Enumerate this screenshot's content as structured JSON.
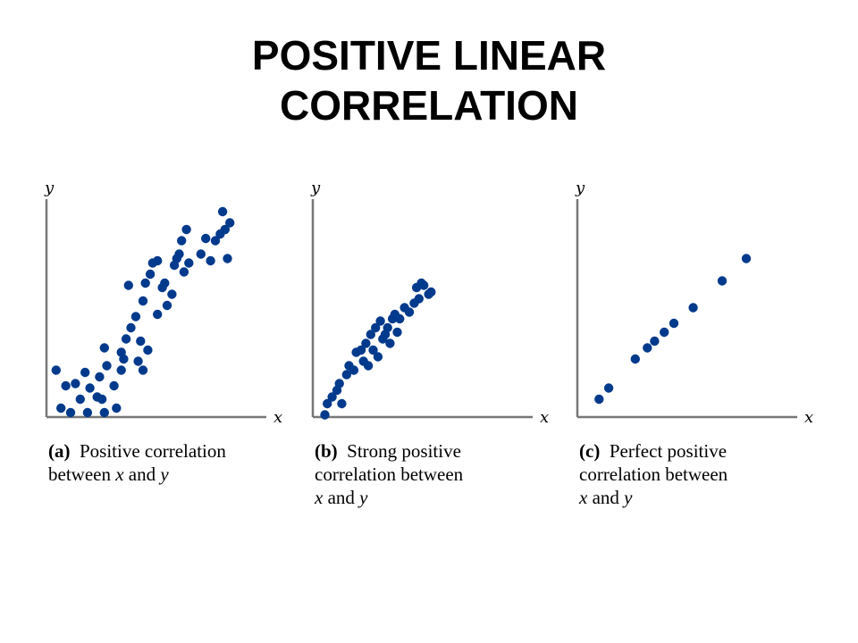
{
  "title_lines": [
    "POSITIVE LINEAR",
    "CORRELATION"
  ],
  "dot_color": "#003a8c",
  "chart_data": [
    {
      "type": "scatter",
      "title": "",
      "xlabel": "x",
      "ylabel": "y",
      "xlim": [
        0,
        100
      ],
      "ylim": [
        0,
        100
      ],
      "grid": false,
      "caption": {
        "tag": "(a)",
        "lines": [
          [
            "Positive correlation"
          ],
          [
            "between ",
            {
              "i": "x"
            },
            " and ",
            {
              "i": "y"
            }
          ]
        ]
      },
      "points": [
        [
          4,
          21
        ],
        [
          6,
          4
        ],
        [
          8,
          14
        ],
        [
          10,
          2
        ],
        [
          12,
          15
        ],
        [
          14,
          8
        ],
        [
          16,
          20
        ],
        [
          17,
          2
        ],
        [
          18,
          13
        ],
        [
          21,
          9
        ],
        [
          22,
          18
        ],
        [
          23,
          8
        ],
        [
          24,
          2
        ],
        [
          24,
          31
        ],
        [
          25,
          23
        ],
        [
          28,
          14
        ],
        [
          29,
          4
        ],
        [
          31,
          21
        ],
        [
          31,
          29
        ],
        [
          32,
          26
        ],
        [
          33,
          35
        ],
        [
          34,
          59
        ],
        [
          35,
          40
        ],
        [
          37,
          45
        ],
        [
          38,
          25
        ],
        [
          39,
          34
        ],
        [
          40,
          21
        ],
        [
          40,
          52
        ],
        [
          41,
          60
        ],
        [
          42,
          30
        ],
        [
          43,
          64
        ],
        [
          44,
          69
        ],
        [
          46,
          46
        ],
        [
          46,
          70
        ],
        [
          48,
          58
        ],
        [
          49,
          60
        ],
        [
          50,
          50
        ],
        [
          52,
          55
        ],
        [
          53,
          68
        ],
        [
          54,
          71
        ],
        [
          55,
          73
        ],
        [
          56,
          79
        ],
        [
          57,
          65
        ],
        [
          58,
          84
        ],
        [
          59,
          69
        ],
        [
          64,
          73
        ],
        [
          66,
          80
        ],
        [
          68,
          70
        ],
        [
          70,
          79
        ],
        [
          72,
          82
        ],
        [
          73,
          92
        ],
        [
          74,
          84
        ],
        [
          75,
          71
        ],
        [
          76,
          87
        ]
      ]
    },
    {
      "type": "scatter",
      "title": "",
      "xlabel": "x",
      "ylabel": "y",
      "xlim": [
        0,
        100
      ],
      "ylim": [
        0,
        100
      ],
      "grid": false,
      "caption": {
        "tag": "(b)",
        "lines": [
          [
            "Strong positive"
          ],
          [
            "correlation between"
          ],
          [
            {
              "i": "x"
            },
            " and ",
            {
              "i": "y"
            }
          ]
        ]
      },
      "points": [
        [
          5,
          1
        ],
        [
          6,
          6
        ],
        [
          8,
          9
        ],
        [
          10,
          12
        ],
        [
          11,
          15
        ],
        [
          12,
          6
        ],
        [
          14,
          19
        ],
        [
          15,
          23
        ],
        [
          17,
          21
        ],
        [
          18,
          29
        ],
        [
          20,
          30
        ],
        [
          21,
          25
        ],
        [
          22,
          33
        ],
        [
          23,
          23
        ],
        [
          24,
          37
        ],
        [
          25,
          30
        ],
        [
          26,
          40
        ],
        [
          27,
          27
        ],
        [
          28,
          43
        ],
        [
          29,
          35
        ],
        [
          30,
          37
        ],
        [
          31,
          40
        ],
        [
          32,
          33
        ],
        [
          33,
          44
        ],
        [
          34,
          46
        ],
        [
          35,
          38
        ],
        [
          36,
          44
        ],
        [
          38,
          49
        ],
        [
          40,
          47
        ],
        [
          42,
          51
        ],
        [
          43,
          58
        ],
        [
          44,
          53
        ],
        [
          45,
          60
        ],
        [
          46,
          59
        ],
        [
          48,
          55
        ],
        [
          49,
          56
        ]
      ]
    },
    {
      "type": "scatter",
      "title": "",
      "xlabel": "x",
      "ylabel": "y",
      "xlim": [
        0,
        100
      ],
      "ylim": [
        0,
        100
      ],
      "grid": false,
      "caption": {
        "tag": "(c)",
        "lines": [
          [
            "Perfect positive"
          ],
          [
            "correlation between"
          ],
          [
            {
              "i": "x"
            },
            " and ",
            {
              "i": "y"
            }
          ]
        ]
      },
      "points": [
        [
          9,
          8
        ],
        [
          13,
          13
        ],
        [
          24,
          26
        ],
        [
          29,
          31
        ],
        [
          32,
          34
        ],
        [
          36,
          38
        ],
        [
          40,
          42
        ],
        [
          48,
          49
        ],
        [
          60,
          61
        ],
        [
          70,
          71
        ]
      ]
    }
  ]
}
